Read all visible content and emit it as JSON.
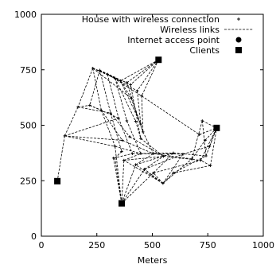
{
  "chart_data": {
    "type": "scatter",
    "title": "",
    "xlabel": "Meters",
    "ylabel": "",
    "xlim": [
      0,
      1000
    ],
    "ylim": [
      0,
      1000
    ],
    "xticks": [
      "0",
      "250",
      "500",
      "750",
      "1000"
    ],
    "yticks": [
      "0",
      "250",
      "500",
      "750",
      "1000"
    ],
    "legend_position": "top-right",
    "legend": [
      {
        "label": "House with wireless connection",
        "marker": "plus"
      },
      {
        "label": "Wireless links",
        "marker": "dashed-line"
      },
      {
        "label": "Internet access point",
        "marker": "circle"
      },
      {
        "label": "Clients",
        "marker": "square"
      }
    ],
    "houses": [
      [
        232,
        757
      ],
      [
        263,
        748
      ],
      [
        298,
        730
      ],
      [
        332,
        712
      ],
      [
        357,
        700
      ],
      [
        385,
        692
      ],
      [
        402,
        683
      ],
      [
        432,
        655
      ],
      [
        405,
        622
      ],
      [
        452,
        632
      ],
      [
        165,
        582
      ],
      [
        218,
        590
      ],
      [
        270,
        568
      ],
      [
        312,
        555
      ],
      [
        348,
        532
      ],
      [
        385,
        520
      ],
      [
        425,
        518
      ],
      [
        448,
        505
      ],
      [
        458,
        470
      ],
      [
        448,
        440
      ],
      [
        398,
        448
      ],
      [
        365,
        432
      ],
      [
        332,
        405
      ],
      [
        362,
        382
      ],
      [
        410,
        372
      ],
      [
        448,
        372
      ],
      [
        505,
        372
      ],
      [
        550,
        360
      ],
      [
        595,
        375
      ],
      [
        638,
        370
      ],
      [
        678,
        348
      ],
      [
        718,
        342
      ],
      [
        742,
        362
      ],
      [
        758,
        405
      ],
      [
        738,
        432
      ],
      [
        712,
        458
      ],
      [
        725,
        520
      ],
      [
        762,
        318
      ],
      [
        595,
        285
      ],
      [
        548,
        238
      ],
      [
        505,
        285
      ],
      [
        465,
        302
      ],
      [
        425,
        322
      ],
      [
        372,
        342
      ],
      [
        325,
        352
      ],
      [
        105,
        452
      ]
    ],
    "access_point": [],
    "clients": [
      [
        72,
        248
      ],
      [
        362,
        148
      ],
      [
        528,
        795
      ],
      [
        790,
        488
      ]
    ],
    "links": [
      [
        [
          232,
          757
        ],
        [
          298,
          730
        ]
      ],
      [
        [
          232,
          757
        ],
        [
          357,
          700
        ]
      ],
      [
        [
          232,
          757
        ],
        [
          165,
          582
        ]
      ],
      [
        [
          232,
          757
        ],
        [
          270,
          568
        ]
      ],
      [
        [
          232,
          757
        ],
        [
          405,
          622
        ]
      ],
      [
        [
          232,
          757
        ],
        [
          385,
          692
        ]
      ],
      [
        [
          263,
          748
        ],
        [
          332,
          712
        ]
      ],
      [
        [
          263,
          748
        ],
        [
          402,
          683
        ]
      ],
      [
        [
          263,
          748
        ],
        [
          312,
          555
        ]
      ],
      [
        [
          263,
          748
        ],
        [
          218,
          590
        ]
      ],
      [
        [
          298,
          730
        ],
        [
          432,
          655
        ]
      ],
      [
        [
          298,
          730
        ],
        [
          348,
          532
        ]
      ],
      [
        [
          298,
          730
        ],
        [
          452,
          632
        ]
      ],
      [
        [
          332,
          712
        ],
        [
          385,
          520
        ]
      ],
      [
        [
          332,
          712
        ],
        [
          425,
          518
        ]
      ],
      [
        [
          357,
          700
        ],
        [
          448,
          505
        ]
      ],
      [
        [
          357,
          700
        ],
        [
          405,
          622
        ]
      ],
      [
        [
          385,
          692
        ],
        [
          458,
          470
        ]
      ],
      [
        [
          402,
          683
        ],
        [
          448,
          440
        ]
      ],
      [
        [
          432,
          655
        ],
        [
          448,
          505
        ]
      ],
      [
        [
          528,
          795
        ],
        [
          432,
          655
        ]
      ],
      [
        [
          528,
          795
        ],
        [
          452,
          632
        ]
      ],
      [
        [
          528,
          795
        ],
        [
          385,
          692
        ]
      ],
      [
        [
          528,
          795
        ],
        [
          402,
          683
        ]
      ],
      [
        [
          528,
          795
        ],
        [
          357,
          700
        ]
      ],
      [
        [
          165,
          582
        ],
        [
          105,
          452
        ]
      ],
      [
        [
          165,
          582
        ],
        [
          218,
          590
        ]
      ],
      [
        [
          165,
          582
        ],
        [
          312,
          555
        ]
      ],
      [
        [
          218,
          590
        ],
        [
          270,
          568
        ]
      ],
      [
        [
          218,
          590
        ],
        [
          348,
          532
        ]
      ],
      [
        [
          270,
          568
        ],
        [
          365,
          432
        ]
      ],
      [
        [
          270,
          568
        ],
        [
          332,
          405
        ]
      ],
      [
        [
          312,
          555
        ],
        [
          398,
          448
        ]
      ],
      [
        [
          312,
          555
        ],
        [
          362,
          382
        ]
      ],
      [
        [
          348,
          532
        ],
        [
          410,
          372
        ]
      ],
      [
        [
          385,
          520
        ],
        [
          448,
          372
        ]
      ],
      [
        [
          425,
          518
        ],
        [
          448,
          440
        ]
      ],
      [
        [
          452,
          632
        ],
        [
          458,
          470
        ]
      ],
      [
        [
          405,
          622
        ],
        [
          458,
          470
        ]
      ],
      [
        [
          452,
          632
        ],
        [
          712,
          458
        ]
      ],
      [
        [
          105,
          452
        ],
        [
          332,
          405
        ]
      ],
      [
        [
          105,
          452
        ],
        [
          348,
          532
        ]
      ],
      [
        [
          105,
          452
        ],
        [
          72,
          248
        ]
      ],
      [
        [
          105,
          452
        ],
        [
          365,
          432
        ]
      ],
      [
        [
          362,
          148
        ],
        [
          332,
          352
        ]
      ],
      [
        [
          362,
          148
        ],
        [
          325,
          352
        ]
      ],
      [
        [
          362,
          148
        ],
        [
          372,
          342
        ]
      ],
      [
        [
          362,
          148
        ],
        [
          425,
          322
        ]
      ],
      [
        [
          362,
          148
        ],
        [
          465,
          302
        ]
      ],
      [
        [
          362,
          148
        ],
        [
          505,
          285
        ]
      ],
      [
        [
          362,
          148
        ],
        [
          332,
          405
        ]
      ],
      [
        [
          332,
          405
        ],
        [
          448,
          372
        ]
      ],
      [
        [
          365,
          432
        ],
        [
          505,
          372
        ]
      ],
      [
        [
          398,
          448
        ],
        [
          550,
          360
        ]
      ],
      [
        [
          410,
          372
        ],
        [
          595,
          375
        ]
      ],
      [
        [
          448,
          372
        ],
        [
          638,
          370
        ]
      ],
      [
        [
          448,
          440
        ],
        [
          550,
          360
        ]
      ],
      [
        [
          458,
          470
        ],
        [
          505,
          372
        ]
      ],
      [
        [
          505,
          372
        ],
        [
          678,
          348
        ]
      ],
      [
        [
          550,
          360
        ],
        [
          718,
          342
        ]
      ],
      [
        [
          595,
          375
        ],
        [
          742,
          362
        ]
      ],
      [
        [
          638,
          370
        ],
        [
          758,
          405
        ]
      ],
      [
        [
          678,
          348
        ],
        [
          738,
          432
        ]
      ],
      [
        [
          718,
          342
        ],
        [
          790,
          488
        ]
      ],
      [
        [
          742,
          362
        ],
        [
          790,
          488
        ]
      ],
      [
        [
          758,
          405
        ],
        [
          790,
          488
        ]
      ],
      [
        [
          738,
          432
        ],
        [
          790,
          488
        ]
      ],
      [
        [
          712,
          458
        ],
        [
          790,
          488
        ]
      ],
      [
        [
          725,
          520
        ],
        [
          790,
          488
        ]
      ],
      [
        [
          725,
          520
        ],
        [
          742,
          362
        ]
      ],
      [
        [
          725,
          520
        ],
        [
          678,
          348
        ]
      ],
      [
        [
          762,
          318
        ],
        [
          790,
          488
        ]
      ],
      [
        [
          762,
          318
        ],
        [
          718,
          342
        ]
      ],
      [
        [
          762,
          318
        ],
        [
          595,
          285
        ]
      ],
      [
        [
          595,
          285
        ],
        [
          548,
          238
        ]
      ],
      [
        [
          548,
          238
        ],
        [
          505,
          285
        ]
      ],
      [
        [
          548,
          238
        ],
        [
          465,
          302
        ]
      ],
      [
        [
          548,
          238
        ],
        [
          425,
          322
        ]
      ],
      [
        [
          548,
          238
        ],
        [
          372,
          342
        ]
      ],
      [
        [
          548,
          238
        ],
        [
          638,
          370
        ]
      ],
      [
        [
          548,
          238
        ],
        [
          678,
          348
        ]
      ],
      [
        [
          505,
          285
        ],
        [
          595,
          375
        ]
      ],
      [
        [
          465,
          302
        ],
        [
          550,
          360
        ]
      ],
      [
        [
          425,
          322
        ],
        [
          505,
          372
        ]
      ],
      [
        [
          372,
          342
        ],
        [
          448,
          372
        ]
      ],
      [
        [
          325,
          352
        ],
        [
          410,
          372
        ]
      ],
      [
        [
          332,
          352
        ],
        [
          362,
          382
        ]
      ],
      [
        [
          505,
          285
        ],
        [
          718,
          342
        ]
      ],
      [
        [
          595,
          285
        ],
        [
          742,
          362
        ]
      ],
      [
        [
          465,
          302
        ],
        [
          638,
          370
        ]
      ],
      [
        [
          425,
          322
        ],
        [
          595,
          375
        ]
      ],
      [
        [
          372,
          342
        ],
        [
          550,
          360
        ]
      ]
    ]
  }
}
